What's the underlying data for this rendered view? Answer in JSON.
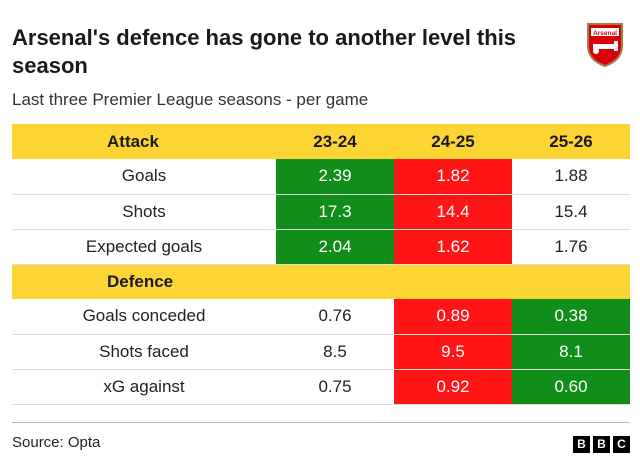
{
  "title": "Arsenal's defence has gone to another level this season",
  "subtitle": "Last three Premier League seasons - per game",
  "logo": {
    "text": "Arsenal",
    "icon": "arsenal-crest-icon",
    "colors": {
      "red": "#db0007",
      "gold": "#9c824a"
    }
  },
  "colors": {
    "header": "#fcd535",
    "best": "#118e1a",
    "worst": "#ff1515"
  },
  "columns": [
    "23-24",
    "24-25",
    "25-26"
  ],
  "sections": [
    {
      "label": "Attack",
      "rows": [
        {
          "label": "Goals",
          "values": [
            "2.39",
            "1.82",
            "1.88"
          ],
          "highlight": [
            "best",
            "worst",
            "none"
          ]
        },
        {
          "label": "Shots",
          "values": [
            "17.3",
            "14.4",
            "15.4"
          ],
          "highlight": [
            "best",
            "worst",
            "none"
          ]
        },
        {
          "label": "Expected goals",
          "values": [
            "2.04",
            "1.62",
            "1.76"
          ],
          "highlight": [
            "best",
            "worst",
            "none"
          ]
        }
      ]
    },
    {
      "label": "Defence",
      "rows": [
        {
          "label": "Goals conceded",
          "values": [
            "0.76",
            "0.89",
            "0.38"
          ],
          "highlight": [
            "none",
            "worst",
            "best"
          ]
        },
        {
          "label": "Shots faced",
          "values": [
            "8.5",
            "9.5",
            "8.1"
          ],
          "highlight": [
            "none",
            "worst",
            "best"
          ]
        },
        {
          "label": "xG against",
          "values": [
            "0.75",
            "0.92",
            "0.60"
          ],
          "highlight": [
            "none",
            "worst",
            "best"
          ]
        }
      ]
    }
  ],
  "source": "Source: Opta",
  "brand": [
    "B",
    "B",
    "C"
  ]
}
